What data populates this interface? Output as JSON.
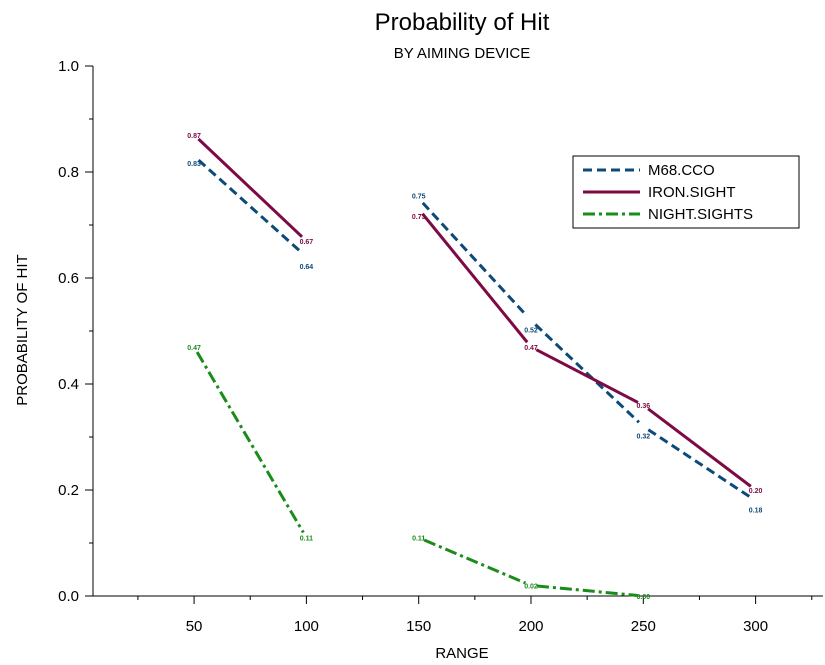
{
  "chart_data": {
    "type": "line",
    "title": "Probability of Hit",
    "subtitle": "BY AIMING DEVICE",
    "xlabel": "RANGE",
    "ylabel": "PROBABILITY OF HIT",
    "xlim": [
      5,
      330
    ],
    "ylim": [
      0,
      1
    ],
    "xticks": [
      50,
      100,
      150,
      200,
      250,
      300
    ],
    "xtick_labels": [
      "50",
      "100",
      "150",
      "200",
      "250",
      "300"
    ],
    "yticks": [
      0,
      0.2,
      0.4,
      0.6,
      0.8,
      1.0
    ],
    "ytick_labels": [
      "0.0",
      "0.2",
      "0.4",
      "0.6",
      "0.8",
      "1.0"
    ],
    "legend_position": "top-right",
    "grid": false,
    "series": [
      {
        "name": "M68.CCO",
        "color": "#0d4a7a",
        "style": "dashed",
        "segments": [
          [
            {
              "x": 50,
              "y": 0.83,
              "label": "0.83"
            },
            {
              "x": 100,
              "y": 0.64,
              "label": "0.64"
            }
          ],
          [
            {
              "x": 150,
              "y": 0.75,
              "label": "0.75"
            },
            {
              "x": 200,
              "y": 0.52,
              "label": "0.52"
            },
            {
              "x": 250,
              "y": 0.32,
              "label": "0.32"
            },
            {
              "x": 300,
              "y": 0.18,
              "label": "0.18"
            }
          ]
        ]
      },
      {
        "name": "IRON.SIGHT",
        "color": "#7d0a45",
        "style": "solid",
        "segments": [
          [
            {
              "x": 50,
              "y": 0.87,
              "label": "0.87"
            },
            {
              "x": 100,
              "y": 0.67,
              "label": "0.67"
            }
          ],
          [
            {
              "x": 150,
              "y": 0.73,
              "label": "0.73"
            },
            {
              "x": 200,
              "y": 0.47,
              "label": "0.47"
            },
            {
              "x": 250,
              "y": 0.36,
              "label": "0.36"
            },
            {
              "x": 300,
              "y": 0.2,
              "label": "0.20"
            }
          ]
        ]
      },
      {
        "name": "NIGHT.SIGHTS",
        "color": "#1a8c1a",
        "style": "dash-dot",
        "segments": [
          [
            {
              "x": 50,
              "y": 0.47,
              "label": "0.47"
            },
            {
              "x": 100,
              "y": 0.11,
              "label": "0.11"
            }
          ],
          [
            {
              "x": 150,
              "y": 0.11,
              "label": "0.11"
            },
            {
              "x": 200,
              "y": 0.02,
              "label": "0.02"
            },
            {
              "x": 250,
              "y": 0.0,
              "label": "0.00"
            }
          ]
        ]
      }
    ]
  }
}
